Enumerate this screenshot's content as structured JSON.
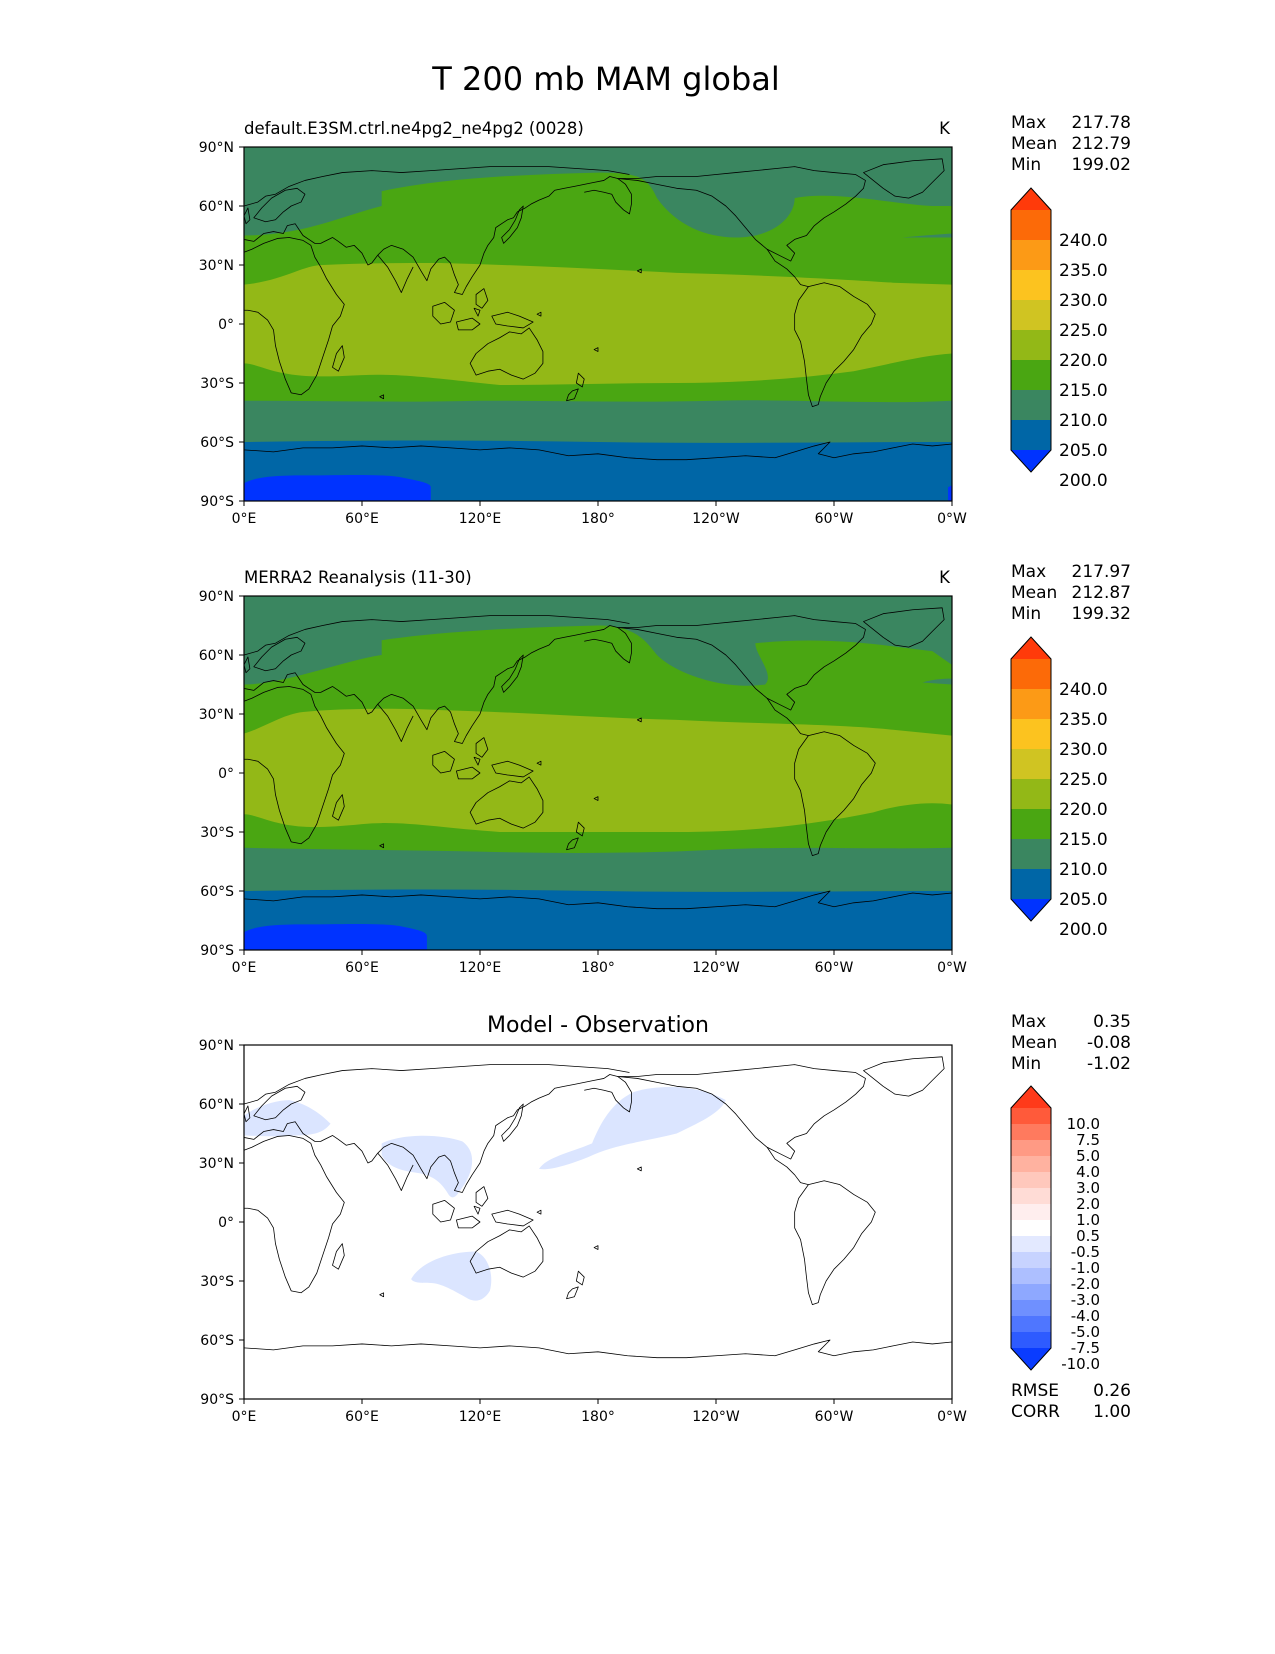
{
  "title": "T 200 mb MAM global",
  "colors": {
    "lev_under": "#0033ff",
    "lev_200": "#0066a6",
    "lev_205": "#3a8660",
    "lev_210": "#4aa612",
    "lev_215": "#93b817",
    "lev_220": "#d0c422",
    "lev_225": "#fcc31f",
    "lev_230": "#fc9a16",
    "lev_235": "#fc6a08",
    "lev_over": "#ff3a0a",
    "diff_neg_light": "#dbe5ff",
    "coastline": "#000000"
  },
  "panels": [
    {
      "id": "test",
      "left_title": "default.E3SM.ctrl.ne4pg2_ne4pg2 (0028)",
      "center_title": "",
      "units": "K",
      "stats": [
        {
          "label": "Max",
          "value": "217.78"
        },
        {
          "label": "Mean",
          "value": "212.79"
        },
        {
          "label": "Min",
          "value": "199.02"
        }
      ],
      "colorbar_labels": [
        "240.0",
        "235.0",
        "230.0",
        "225.0",
        "220.0",
        "215.0",
        "210.0",
        "205.0",
        "200.0"
      ]
    },
    {
      "id": "reference",
      "left_title": "MERRA2 Reanalysis (11-30)",
      "center_title": "",
      "units": "K",
      "stats": [
        {
          "label": "Max",
          "value": "217.97"
        },
        {
          "label": "Mean",
          "value": "212.87"
        },
        {
          "label": "Min",
          "value": "199.32"
        }
      ],
      "colorbar_labels": [
        "240.0",
        "235.0",
        "230.0",
        "225.0",
        "220.0",
        "215.0",
        "210.0",
        "205.0",
        "200.0"
      ]
    },
    {
      "id": "difference",
      "left_title": "",
      "center_title": "Model - Observation",
      "units": "",
      "stats": [
        {
          "label": "Max",
          "value": "0.35"
        },
        {
          "label": "Mean",
          "value": "-0.08"
        },
        {
          "label": "Min",
          "value": "-1.02"
        }
      ],
      "colorbar_labels": [
        "10.0",
        "7.5",
        "5.0",
        "4.0",
        "3.0",
        "2.0",
        "1.0",
        "0.5",
        "-0.5",
        "-1.0",
        "-2.0",
        "-3.0",
        "-4.0",
        "-5.0",
        "-7.5",
        "-10.0"
      ],
      "colorbar_colors": [
        "#ff3a1a",
        "#ff5a3a",
        "#ff7a5e",
        "#ff9a84",
        "#ffb2a0",
        "#ffc8bc",
        "#ffdcd6",
        "#ffeeee",
        "#ffffff",
        "#e3e9ff",
        "#c7d3ff",
        "#adbfff",
        "#8ea8ff",
        "#6f90ff",
        "#4f76ff",
        "#2e5bff",
        "#0a3cff"
      ],
      "footer_stats": [
        {
          "label": "RMSE",
          "value": "0.26"
        },
        {
          "label": "CORR",
          "value": "1.00"
        }
      ]
    }
  ],
  "axes": {
    "lon_ticks": [
      "0°E",
      "60°E",
      "120°E",
      "180°",
      "120°W",
      "60°W",
      "0°W"
    ],
    "lat_ticks": [
      "90°N",
      "60°N",
      "30°N",
      "0°",
      "30°S",
      "60°S",
      "90°S"
    ]
  }
}
